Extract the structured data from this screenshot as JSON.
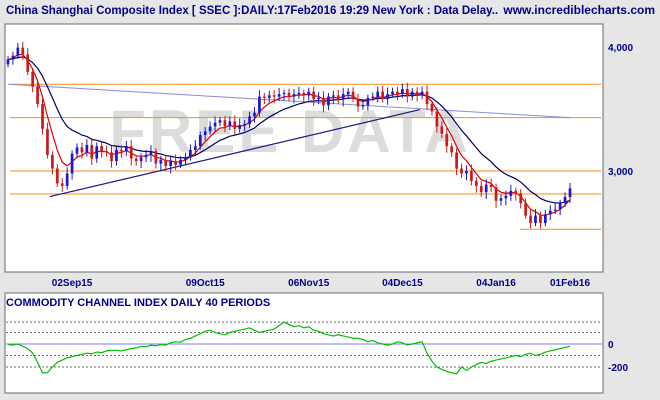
{
  "header": {
    "title": "China Shanghai Composite Index [ SSEC ]:DAILY:17Feb2016 19:29 New York : Data Delay..",
    "site": "www.incrediblecharts.com"
  },
  "watermark": "FREE DATA",
  "colors": {
    "background": "#e6e6e6",
    "plot_bg": "#ffffff",
    "up_candle": "#1a1acc",
    "down_candle": "#cc1a1a",
    "ma_fast": "#e00000",
    "ma_slow": "#000066",
    "ma_long": "#8c8cd6",
    "support_lines": "#ff8c1a",
    "trendline": "#1a1a80",
    "cci_line": "#00c000",
    "text_blue": "#00008b"
  },
  "chart_data": [
    {
      "type": "candlestick",
      "title": "China Shanghai Composite Index [ SSEC ]:DAILY:17Feb2016 19:29 New York : Data Delay..",
      "x_tick_labels": [
        "02Sep15",
        "09Oct15",
        "06Nov15",
        "04Dec15",
        "04Jan16",
        "01Feb16"
      ],
      "y_tick_labels": [
        "4,000",
        "3,000"
      ],
      "ylim": [
        2380,
        4200
      ],
      "horizontal_lines": [
        3700,
        3430,
        3000,
        2815,
        2530
      ],
      "trendline": {
        "from": [
          "2015-08-26",
          2810
        ],
        "to": [
          "2015-12-31",
          3560
        ]
      },
      "close": [
        3900,
        3930,
        3995,
        3940,
        3800,
        3680,
        3540,
        3340,
        3130,
        3020,
        2900,
        2880,
        2980,
        3140,
        3190,
        3150,
        3210,
        3100,
        3200,
        3160,
        3150,
        3080,
        3170,
        3160,
        3200,
        3100,
        3080,
        3110,
        3130,
        3160,
        3060,
        3090,
        3040,
        3080,
        3050,
        3090,
        3110,
        3170,
        3200,
        3290,
        3320,
        3360,
        3390,
        3410,
        3360,
        3400,
        3340,
        3370,
        3380,
        3440,
        3470,
        3600,
        3590,
        3610,
        3600,
        3620,
        3630,
        3600,
        3620,
        3630,
        3610,
        3640,
        3580,
        3590,
        3530,
        3600,
        3610,
        3580,
        3620,
        3640,
        3580,
        3520,
        3530,
        3590,
        3600,
        3640,
        3580,
        3620,
        3640,
        3620,
        3660,
        3600,
        3640,
        3610,
        3640,
        3540,
        3480,
        3360,
        3300,
        3200,
        3150,
        3020,
        2980,
        3000,
        2920,
        2880,
        2830,
        2890,
        2870,
        2760,
        2780,
        2800,
        2840,
        2820,
        2740,
        2640,
        2580,
        2640,
        2580,
        2650,
        2680,
        2690,
        2740,
        2790,
        2860
      ],
      "indicators": [
        "EMA fast (red)",
        "EMA slow (dark)",
        "long MA (light blue)"
      ]
    },
    {
      "type": "line",
      "title": "COMMODITY CHANNEL INDEX DAILY 40 PERIODS",
      "y_tick_labels": [
        "0",
        "-200"
      ],
      "ylim": [
        -280,
        240
      ],
      "reference_lines": [
        190,
        100,
        0,
        -100,
        -200
      ],
      "series": [
        {
          "values": [
            -5,
            -10,
            0,
            -20,
            -40,
            -80,
            -160,
            -250,
            -250,
            -200,
            -160,
            -140,
            -120,
            -110,
            -100,
            -90,
            -80,
            -85,
            -70,
            -75,
            -60,
            -55,
            -55,
            -60,
            -50,
            -40,
            -35,
            -20,
            -25,
            -10,
            -15,
            -5,
            -10,
            10,
            20,
            15,
            40,
            50,
            70,
            90,
            110,
            120,
            100,
            90,
            80,
            100,
            110,
            120,
            130,
            140,
            120,
            100,
            110,
            120,
            130,
            160,
            190,
            170,
            150,
            160,
            140,
            150,
            120,
            110,
            90,
            80,
            70,
            80,
            70,
            60,
            50,
            50,
            40,
            20,
            30,
            10,
            0,
            -10,
            0,
            20,
            10,
            -10,
            0,
            10,
            20,
            -80,
            -150,
            -200,
            -220,
            -240,
            -250,
            -260,
            -200,
            -230,
            -200,
            -180,
            -160,
            -170,
            -150,
            -140,
            -130,
            -120,
            -110,
            -100,
            -110,
            -90,
            -80,
            -100,
            -90,
            -70,
            -60,
            -50,
            -40,
            -30,
            -20
          ]
        }
      ]
    }
  ]
}
